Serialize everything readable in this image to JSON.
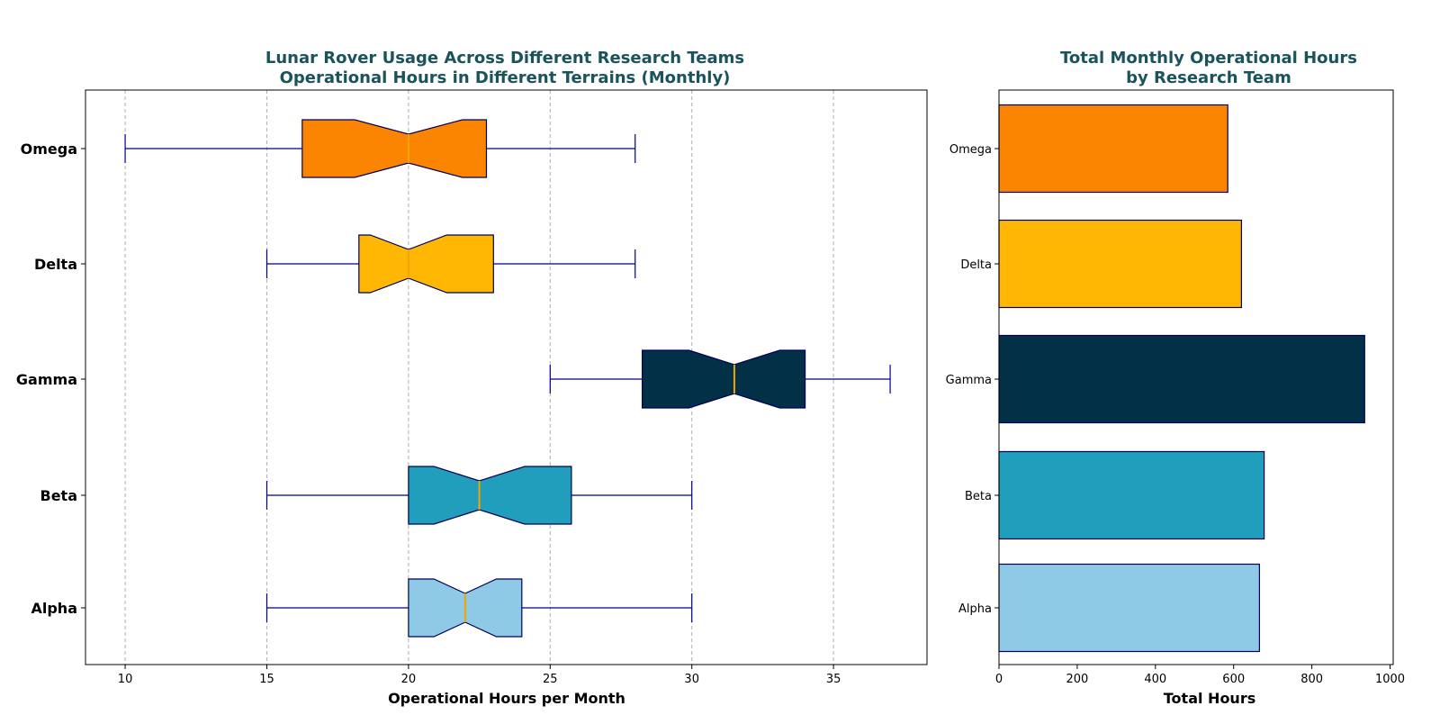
{
  "chart_data": [
    {
      "type": "boxplot",
      "orientation": "horizontal",
      "notched": true,
      "title": "Lunar Rover Usage Across Different Research Teams\nOperational Hours in Different Terrains (Monthly)",
      "xlabel": "Operational Hours per Month",
      "ylabel": "",
      "xlim": [
        8.6,
        38.3
      ],
      "xticks": [
        10,
        15,
        20,
        25,
        30,
        35
      ],
      "grid": "x-dashed",
      "categories": [
        "Alpha",
        "Beta",
        "Gamma",
        "Delta",
        "Omega"
      ],
      "boxes": [
        {
          "name": "Alpha",
          "whislo": 15,
          "q1": 20,
          "med": 22,
          "q3": 24,
          "whishi": 30,
          "notch_lo": 20.9,
          "notch_hi": 23.1,
          "color": "#8ecae6"
        },
        {
          "name": "Beta",
          "whislo": 15,
          "q1": 20,
          "med": 22.5,
          "q3": 25.75,
          "whishi": 30,
          "notch_lo": 20.9,
          "notch_hi": 24.1,
          "color": "#219ebc"
        },
        {
          "name": "Gamma",
          "whislo": 25,
          "q1": 28.25,
          "med": 31.5,
          "q3": 34,
          "whishi": 37,
          "notch_lo": 29.9,
          "notch_hi": 33.1,
          "color": "#023047"
        },
        {
          "name": "Delta",
          "whislo": 15,
          "q1": 18.25,
          "med": 20,
          "q3": 23,
          "whishi": 28,
          "notch_lo": 18.65,
          "notch_hi": 21.35,
          "color": "#ffb703"
        },
        {
          "name": "Omega",
          "whislo": 10,
          "q1": 16.25,
          "med": 20,
          "q3": 22.75,
          "whishi": 28,
          "notch_lo": 18.1,
          "notch_hi": 21.9,
          "color": "#fb8500"
        }
      ],
      "median_color": "#f4a300",
      "whisker_color": "#00008b"
    },
    {
      "type": "bar",
      "orientation": "horizontal",
      "title": "Total Monthly Operational Hours\nby Research Team",
      "xlabel": "Total Hours",
      "ylabel": "",
      "xlim": [
        0,
        1008
      ],
      "xticks": [
        0,
        200,
        400,
        600,
        800,
        1000
      ],
      "categories": [
        "Alpha",
        "Beta",
        "Gamma",
        "Delta",
        "Omega"
      ],
      "values": [
        666,
        678,
        935,
        620,
        585
      ],
      "colors": [
        "#8ecae6",
        "#219ebc",
        "#023047",
        "#ffb703",
        "#fb8500"
      ]
    }
  ]
}
